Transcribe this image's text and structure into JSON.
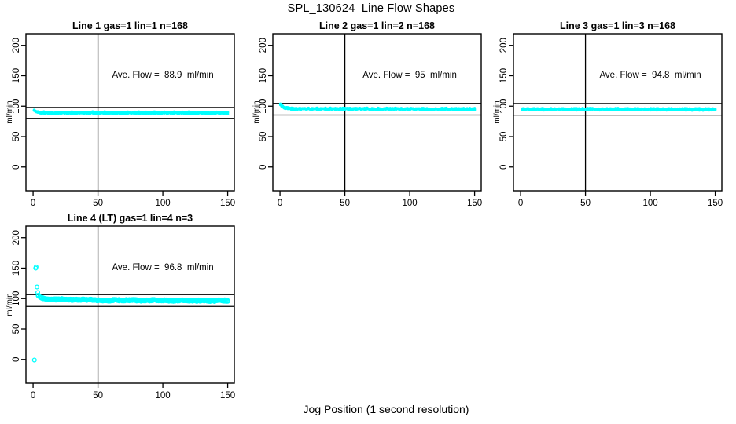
{
  "figure": {
    "title": "SPL_130624  Line Flow Shapes",
    "xlabel": "Jog Position (1 second resolution)",
    "background_color": "#FFFFFF",
    "accent_color": "#00FFFF",
    "frame_color": "#000000"
  },
  "chart_data": [
    {
      "type": "scatter",
      "title": "Line 1 gas=1 lin=1 n=168",
      "line": 1,
      "gas": 1,
      "lin": 1,
      "n": 168,
      "ylabel": "ml/min",
      "annotation": "Ave. Flow =  88.9  ml/min",
      "ave_flow_ml_min": 88.9,
      "xticks": [
        0,
        50,
        100,
        150
      ],
      "yticks": [
        0,
        50,
        100,
        150,
        200
      ],
      "xlim": [
        -5.5,
        155.1
      ],
      "ylim": [
        -39,
        219
      ],
      "vline_x": 50,
      "hlines_y": [
        97.8,
        80.0
      ],
      "grid": false,
      "legend": "none",
      "marker": "open-circle",
      "marker_color": "#00FFFF",
      "marker_radius": 1.7,
      "marker_filled": true,
      "band_keypoints": [
        [
          0.8,
          93.5
        ],
        [
          2,
          91.5
        ],
        [
          3,
          90.3
        ],
        [
          5,
          89.5
        ],
        [
          15,
          89.0
        ],
        [
          40,
          89.3
        ],
        [
          70,
          89.0
        ],
        [
          100,
          89.2
        ],
        [
          130,
          89.0
        ],
        [
          150,
          89.0
        ]
      ],
      "band_jitter": 1.2,
      "band_points": 160,
      "band_overlays": 3,
      "extra_points": [],
      "seed": 11
    },
    {
      "type": "scatter",
      "title": "Line 2 gas=1 lin=2 n=168",
      "line": 2,
      "gas": 1,
      "lin": 2,
      "n": 168,
      "ylabel": "ml/min",
      "annotation": "Ave. Flow =  95  ml/min",
      "ave_flow_ml_min": 95,
      "xticks": [
        0,
        50,
        100,
        150
      ],
      "yticks": [
        0,
        50,
        100,
        150,
        200
      ],
      "xlim": [
        -5.5,
        155.1
      ],
      "ylim": [
        -39,
        219
      ],
      "vline_x": 50,
      "hlines_y": [
        104.5,
        85.5
      ],
      "grid": false,
      "legend": "none",
      "marker": "open-circle",
      "marker_color": "#00FFFF",
      "marker_radius": 1.7,
      "marker_filled": true,
      "band_keypoints": [
        [
          0.3,
          103.5
        ],
        [
          1,
          101.5
        ],
        [
          2,
          99.5
        ],
        [
          3,
          98.0
        ],
        [
          5,
          96.5
        ],
        [
          10,
          95.8
        ],
        [
          40,
          95.6
        ],
        [
          80,
          95.5
        ],
        [
          120,
          95.2
        ],
        [
          150,
          95.0
        ]
      ],
      "band_jitter": 1.2,
      "band_points": 160,
      "band_overlays": 3,
      "extra_points": [],
      "seed": 22
    },
    {
      "type": "scatter",
      "title": "Line 3 gas=1 lin=3 n=168",
      "line": 3,
      "gas": 1,
      "lin": 3,
      "n": 168,
      "ylabel": "ml/min",
      "annotation": "Ave. Flow =  94.8  ml/min",
      "ave_flow_ml_min": 94.8,
      "xticks": [
        0,
        50,
        100,
        150
      ],
      "yticks": [
        0,
        50,
        100,
        150,
        200
      ],
      "xlim": [
        -5.5,
        155.1
      ],
      "ylim": [
        -39,
        219
      ],
      "vline_x": 50,
      "hlines_y": [
        104.3,
        85.3
      ],
      "grid": false,
      "legend": "none",
      "marker": "open-circle",
      "marker_color": "#00FFFF",
      "marker_radius": 1.7,
      "marker_filled": true,
      "band_keypoints": [
        [
          1,
          95.0
        ],
        [
          40,
          94.9
        ],
        [
          80,
          94.8
        ],
        [
          120,
          94.7
        ],
        [
          150,
          94.5
        ]
      ],
      "band_jitter": 1.2,
      "band_points": 160,
      "band_overlays": 3,
      "extra_points": [],
      "seed": 33
    },
    {
      "type": "scatter",
      "title": "Line 4 (LT) gas=1 lin=4 n=3",
      "line": 4,
      "gas": 1,
      "lin": 4,
      "n": 3,
      "lt": true,
      "ylabel": "ml/min",
      "annotation": "Ave. Flow =  96.8  ml/min",
      "ave_flow_ml_min": 96.8,
      "xticks": [
        0,
        50,
        100,
        150
      ],
      "yticks": [
        0,
        50,
        100,
        150,
        200
      ],
      "xlim": [
        -5.5,
        155.1
      ],
      "ylim": [
        -39,
        219
      ],
      "vline_x": 50,
      "hlines_y": [
        106.5,
        87.1
      ],
      "grid": false,
      "legend": "none",
      "marker": "open-circle",
      "marker_color": "#00FFFF",
      "marker_radius": 2.4,
      "marker_filled": false,
      "band_keypoints": [
        [
          4,
          104.5
        ],
        [
          6,
          101.5
        ],
        [
          9,
          99.5
        ],
        [
          14,
          98.5
        ],
        [
          22,
          99.0
        ],
        [
          30,
          98.0
        ],
        [
          40,
          98.5
        ],
        [
          50,
          97.5
        ],
        [
          57,
          96.3
        ],
        [
          63,
          97.8
        ],
        [
          70,
          97.0
        ],
        [
          78,
          97.6
        ],
        [
          85,
          96.4
        ],
        [
          93,
          97.5
        ],
        [
          100,
          97.0
        ],
        [
          108,
          96.6
        ],
        [
          115,
          97.2
        ],
        [
          122,
          96.4
        ],
        [
          130,
          97.0
        ],
        [
          137,
          96.0
        ],
        [
          143,
          97.0
        ],
        [
          150,
          96.3
        ]
      ],
      "band_jitter": 0.9,
      "band_points": 130,
      "band_overlays": 3,
      "extra_points": [
        [
          1,
          -1
        ],
        [
          2,
          150
        ],
        [
          2.3,
          152
        ],
        [
          3,
          119
        ],
        [
          3.6,
          110
        ]
      ],
      "seed": 44
    }
  ]
}
